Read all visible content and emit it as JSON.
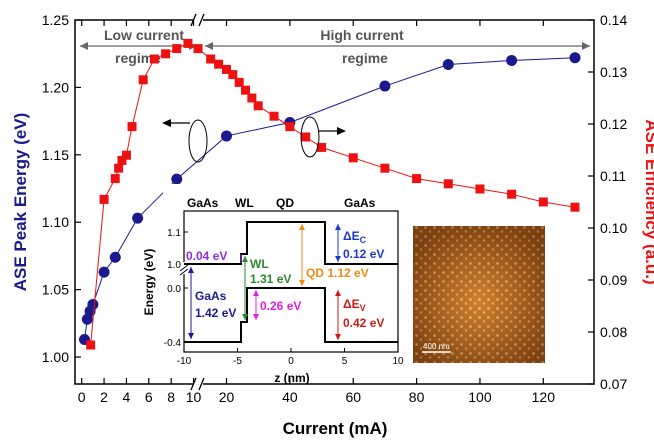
{
  "chart_data": {
    "type": "scatter",
    "x_axis": {
      "title": "Current (mA)",
      "segments": [
        {
          "range": [
            -0.6,
            10.4
          ],
          "ticks": [
            0,
            2,
            4,
            6,
            8,
            10
          ]
        },
        {
          "range": [
            11,
            136
          ],
          "ticks": [
            20,
            40,
            60,
            80,
            100,
            120
          ]
        }
      ]
    },
    "y_left": {
      "title": "ASE Peak Energy (eV)",
      "range": [
        0.98,
        1.25
      ],
      "ticks": [
        "1.00",
        "1.05",
        "1.10",
        "1.15",
        "1.20",
        "1.25"
      ],
      "color": "#1a1a8c"
    },
    "y_right": {
      "title": "ASE Efficiency (a.u.)",
      "range": [
        0.07,
        0.14
      ],
      "ticks": [
        "0.07",
        "0.08",
        "0.09",
        "0.10",
        "0.11",
        "0.12",
        "0.13",
        "0.14"
      ],
      "color": "#ee1111"
    },
    "regimes": {
      "low": [
        "Low current",
        "regime"
      ],
      "high": [
        "High current",
        "regime"
      ]
    },
    "series": [
      {
        "axis": "left",
        "color": "#1a1a8c",
        "marker": "circle",
        "x": [
          0.25,
          0.5,
          0.75,
          1,
          2,
          3,
          5,
          8.5,
          20,
          40,
          70,
          90,
          110,
          130
        ],
        "y": [
          1.013,
          1.028,
          1.034,
          1.039,
          1.063,
          1.074,
          1.103,
          1.132,
          1.164,
          1.174,
          1.201,
          1.217,
          1.22,
          1.222
        ]
      },
      {
        "axis": "right",
        "color": "#ee1111",
        "marker": "square",
        "x": [
          0.8,
          2,
          3,
          3.3,
          3.6,
          4,
          4.5,
          5.5,
          6.5,
          7.5,
          8.5,
          9.5,
          11,
          15,
          17.5,
          20,
          22,
          24,
          26,
          28,
          30,
          35,
          40,
          45,
          50,
          60,
          70,
          80,
          90,
          100,
          110,
          120,
          130
        ],
        "y": [
          0.0775,
          0.1055,
          0.1095,
          0.1115,
          0.113,
          0.114,
          0.1195,
          0.1285,
          0.1325,
          0.1335,
          0.1345,
          0.1355,
          0.1345,
          0.1325,
          0.1315,
          0.1305,
          0.1295,
          0.128,
          0.1265,
          0.125,
          0.1235,
          0.1215,
          0.1195,
          0.1175,
          0.1155,
          0.1135,
          0.1115,
          0.1095,
          0.1085,
          0.1075,
          0.1065,
          0.105,
          0.104
        ]
      }
    ],
    "inset_band": {
      "x_axis": {
        "title": "z (nm)",
        "ticks": [
          "-10",
          "-5",
          "0",
          "5",
          "10"
        ]
      },
      "y_axis": {
        "title": "Energy (eV)",
        "ticks": [
          "-0.4",
          "0.0",
          "1.0",
          "1.1"
        ]
      },
      "regions": [
        "GaAs",
        "WL",
        "QD",
        "GaAs"
      ],
      "annotations": {
        "offset_04": "0.04 eV",
        "wl_label": "WL",
        "wl_gap": "1.31 eV",
        "gaas_label": "GaAs",
        "gaas_gap": "1.42 eV",
        "hole_gap": "0.26 eV",
        "qd_gap": "QD 1.12 eV",
        "dEc": "ΔE",
        "dEc_sub": "C",
        "dEc_val": "0.12 eV",
        "dEv": "ΔE",
        "dEv_sub": "V",
        "dEv_val": "0.42 eV"
      }
    },
    "inset_image": {
      "scale_label": "400 nm"
    }
  }
}
